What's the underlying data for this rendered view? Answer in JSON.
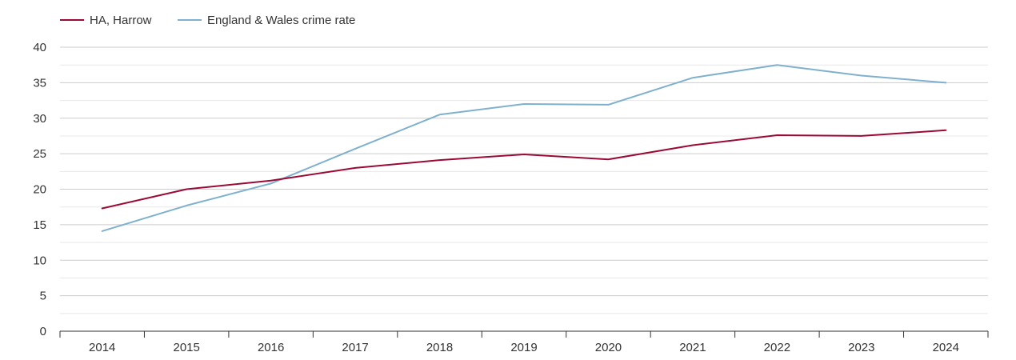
{
  "chart_data": {
    "type": "line",
    "title": "",
    "xlabel": "",
    "ylabel": "",
    "x": [
      "2014",
      "2015",
      "2016",
      "2017",
      "2018",
      "2019",
      "2020",
      "2021",
      "2022",
      "2023",
      "2024"
    ],
    "ylim": [
      0,
      40
    ],
    "yticks": [
      "0",
      "5",
      "10",
      "15",
      "20",
      "25",
      "30",
      "35",
      "40"
    ],
    "grid": true,
    "legend_position": "top-left",
    "series": [
      {
        "name": "HA, Harrow",
        "color": "#9b0a35",
        "values": [
          17.3,
          20.0,
          21.2,
          23.0,
          24.1,
          24.9,
          24.2,
          26.2,
          27.6,
          27.5,
          28.3
        ]
      },
      {
        "name": "England & Wales crime rate",
        "color": "#7fb0cd",
        "values": [
          14.1,
          17.7,
          20.8,
          25.7,
          30.5,
          32.0,
          31.9,
          35.7,
          37.5,
          36.0,
          35.0
        ]
      }
    ]
  }
}
